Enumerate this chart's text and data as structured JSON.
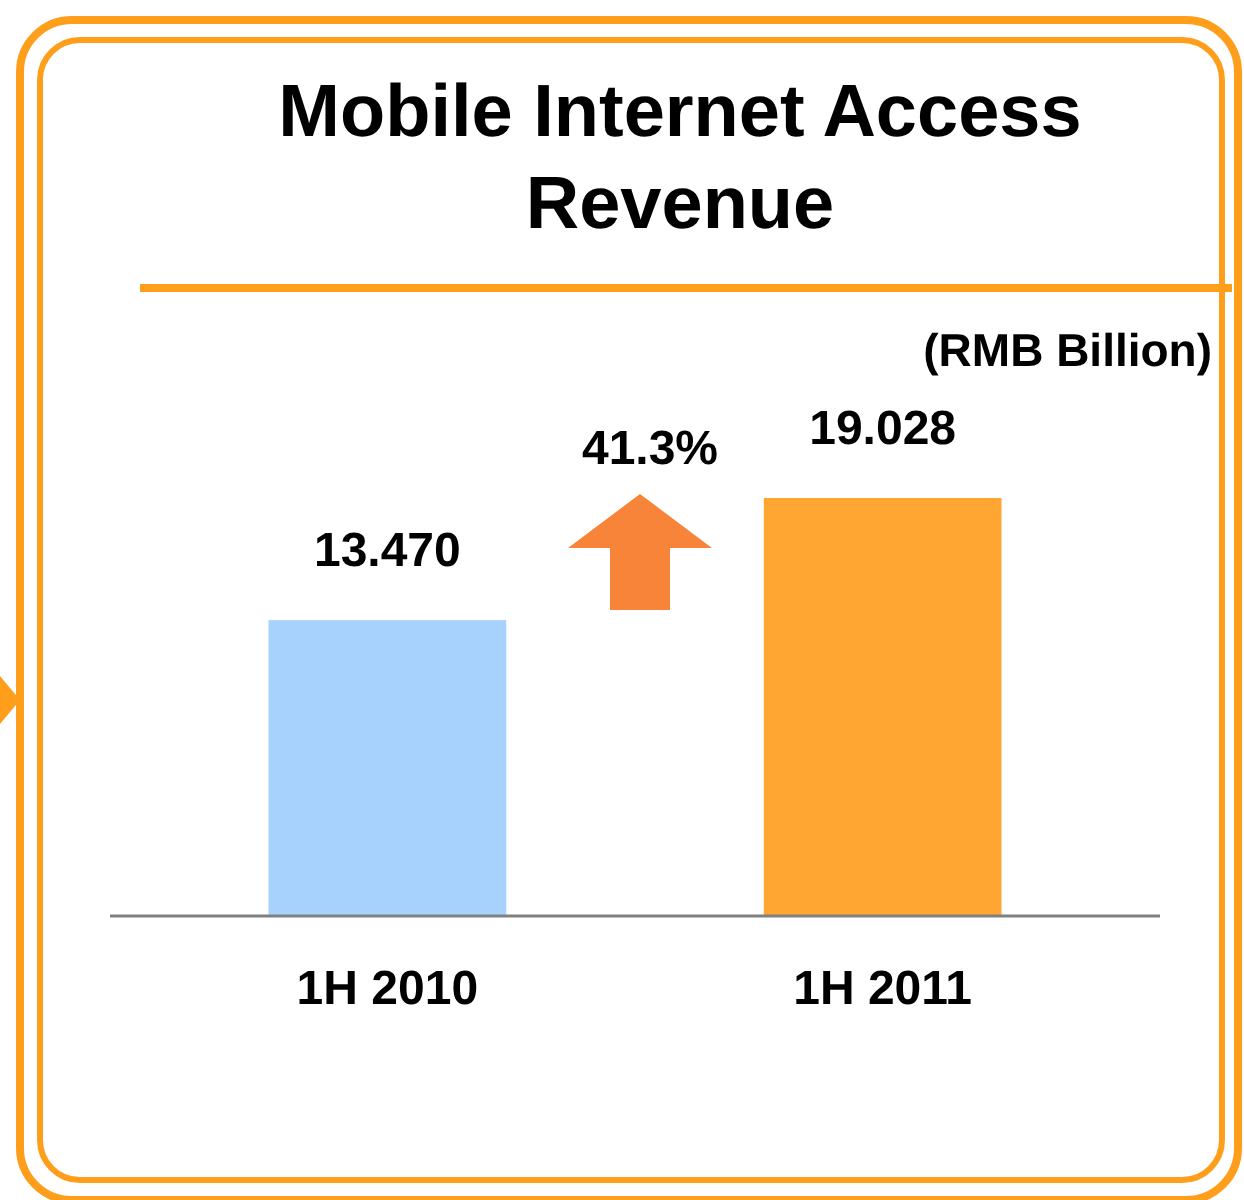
{
  "chart_data": {
    "type": "bar",
    "title": "Mobile Internet Access Revenue",
    "subtitle": "(RMB Billion)",
    "categories": [
      "1H 2010",
      "1H 2011"
    ],
    "values": [
      13.47,
      19.028
    ],
    "colors": [
      "#a6d2fd",
      "#ffa632"
    ],
    "value_labels": [
      "13.470",
      "19.028"
    ],
    "annotations": [
      "41.3%"
    ]
  }
}
